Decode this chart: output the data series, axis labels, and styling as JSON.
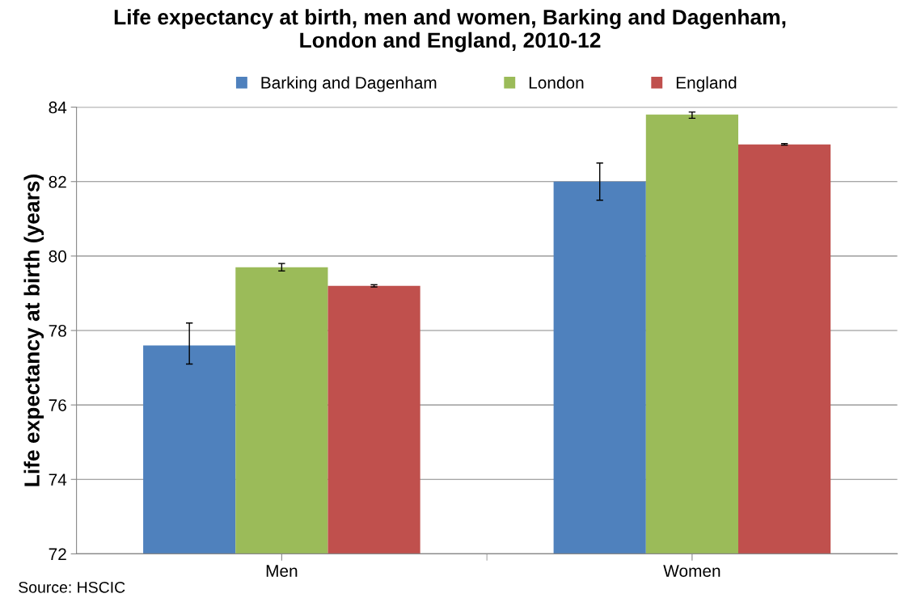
{
  "chart_data": {
    "type": "bar",
    "title": "Life expectancy at birth, men and women, Barking and Dagenham,\nLondon and England, 2010-12",
    "ylabel": "Life expectancy at birth (years)",
    "categories": [
      "Men",
      "Women"
    ],
    "series": [
      {
        "name": "Barking and Dagenham",
        "color": "#4f81bd",
        "values": [
          77.6,
          82.0
        ],
        "errors": [
          [
            77.1,
            78.2
          ],
          [
            81.5,
            82.5
          ]
        ]
      },
      {
        "name": "London",
        "color": "#9bbb59",
        "values": [
          79.7,
          83.8
        ],
        "errors": [
          [
            79.6,
            79.8
          ],
          [
            83.7,
            83.87
          ]
        ]
      },
      {
        "name": "England",
        "color": "#c0504d",
        "values": [
          79.2,
          83.0
        ],
        "errors": [
          [
            79.17,
            79.23
          ],
          [
            82.98,
            83.02
          ]
        ]
      }
    ],
    "ylim": [
      72,
      84
    ],
    "yticks": [
      72,
      74,
      76,
      78,
      80,
      82,
      84
    ],
    "grid": "y",
    "legend": "top",
    "annotations": [
      "Source: HSCIC"
    ]
  }
}
